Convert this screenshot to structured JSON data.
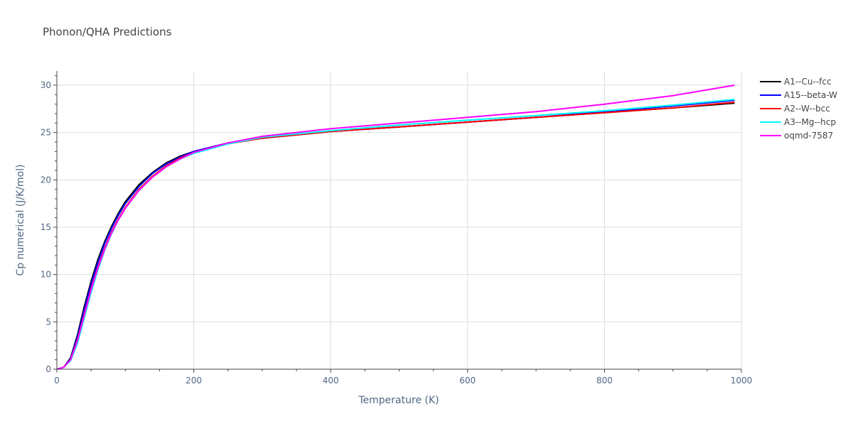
{
  "chart_data": {
    "type": "line",
    "title": "Phonon/QHA Predictions",
    "xlabel": "Temperature (K)",
    "ylabel": "Cp numerical (J/K/mol)",
    "xlim": [
      0,
      1000
    ],
    "ylim": [
      0,
      31.5
    ],
    "xticks": [
      0,
      200,
      400,
      600,
      800,
      1000
    ],
    "yticks": [
      0,
      5,
      10,
      15,
      20,
      25,
      30
    ],
    "grid": true,
    "legend_position": "top-right",
    "x": [
      0,
      10,
      20,
      30,
      40,
      50,
      60,
      70,
      80,
      90,
      100,
      120,
      140,
      160,
      180,
      200,
      250,
      300,
      400,
      500,
      600,
      700,
      800,
      900,
      990
    ],
    "series": [
      {
        "name": "A1--Cu--fcc",
        "color": "#000000",
        "values": [
          0,
          0.2,
          1.2,
          3.6,
          6.6,
          9.3,
          11.6,
          13.5,
          15.1,
          16.5,
          17.7,
          19.5,
          20.8,
          21.8,
          22.5,
          23.0,
          23.9,
          24.4,
          25.1,
          25.6,
          26.1,
          26.6,
          27.1,
          27.6,
          28.1
        ]
      },
      {
        "name": "A15--beta-W",
        "color": "#0000ff",
        "values": [
          0,
          0.2,
          1.1,
          3.4,
          6.3,
          9.0,
          11.3,
          13.3,
          14.9,
          16.3,
          17.5,
          19.3,
          20.7,
          21.7,
          22.4,
          23.0,
          23.9,
          24.4,
          25.1,
          25.6,
          26.1,
          26.6,
          27.2,
          27.8,
          28.4
        ]
      },
      {
        "name": "A2--W--bcc",
        "color": "#ff0000",
        "values": [
          0,
          0.2,
          1.0,
          3.1,
          5.8,
          8.5,
          10.8,
          12.8,
          14.5,
          15.9,
          17.1,
          19.0,
          20.4,
          21.5,
          22.3,
          22.9,
          23.8,
          24.4,
          25.1,
          25.6,
          26.1,
          26.6,
          27.1,
          27.6,
          28.2
        ]
      },
      {
        "name": "A3--Mg--hcp",
        "color": "#00ffff",
        "values": [
          0,
          0.2,
          0.9,
          2.7,
          5.4,
          8.1,
          10.5,
          12.6,
          14.3,
          15.8,
          17.0,
          18.9,
          20.3,
          21.4,
          22.2,
          22.8,
          23.8,
          24.5,
          25.2,
          25.8,
          26.3,
          26.8,
          27.3,
          27.9,
          28.5
        ]
      },
      {
        "name": "oqmd-7587",
        "color": "#ff00ff",
        "values": [
          0,
          0.2,
          1.0,
          3.0,
          5.7,
          8.4,
          10.7,
          12.7,
          14.4,
          15.8,
          17.0,
          18.9,
          20.3,
          21.4,
          22.2,
          22.9,
          23.9,
          24.6,
          25.4,
          26.0,
          26.6,
          27.2,
          28.0,
          28.9,
          30.0
        ]
      }
    ]
  }
}
